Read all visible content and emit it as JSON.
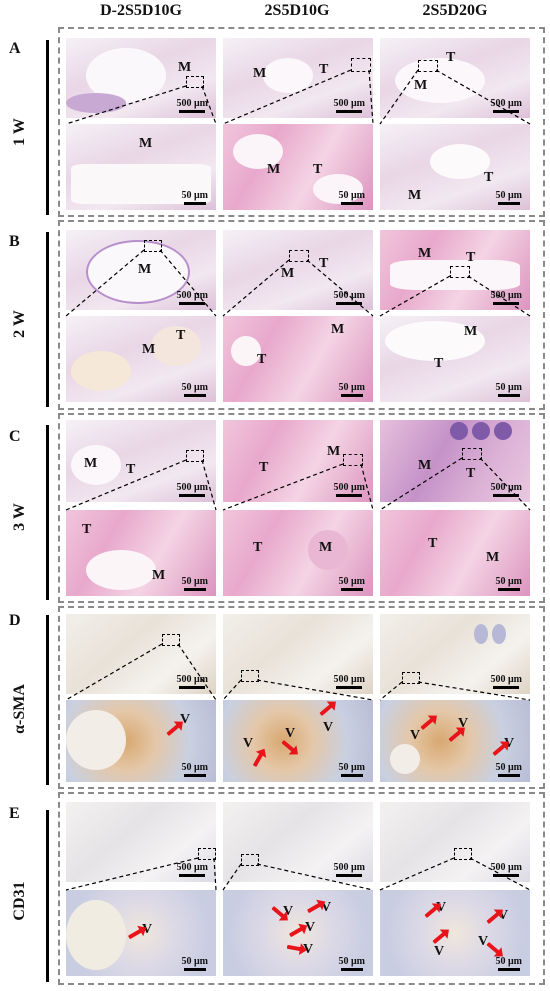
{
  "columns": [
    "D-2S5D10G",
    "2S5D10G",
    "2S5D20G"
  ],
  "rows": [
    {
      "letter": "A",
      "label": "1 W"
    },
    {
      "letter": "B",
      "label": "2 W"
    },
    {
      "letter": "C",
      "label": "3 W"
    },
    {
      "letter": "D",
      "label": "α-SMA"
    },
    {
      "letter": "E",
      "label": "CD31"
    }
  ],
  "scale_top": "500 μm",
  "scale_bottom": "50 μm",
  "labels": {
    "M": "M",
    "T": "T",
    "V": "V"
  }
}
